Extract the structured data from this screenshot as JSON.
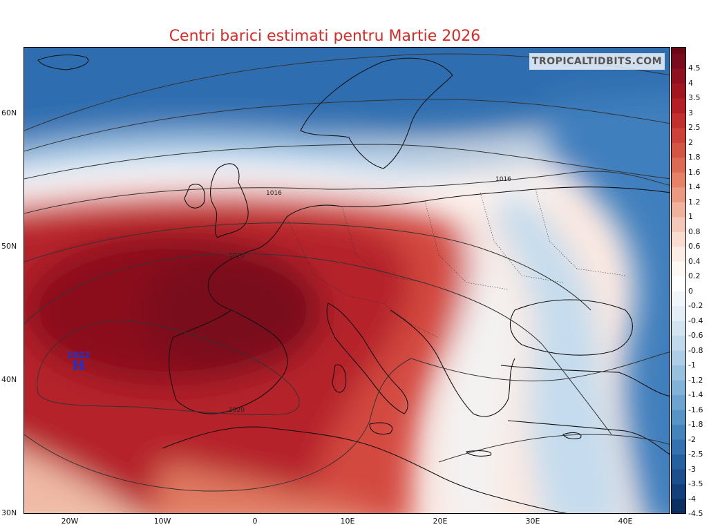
{
  "title": "Centri barici estimati pentru Martie 2026",
  "watermark": "TROPICALTIDBITS.COM",
  "latitude_labels": [
    "60N",
    "50N",
    "40N",
    "30N"
  ],
  "longitude_labels": [
    "20W",
    "10W",
    "0",
    "10E",
    "20E",
    "30E",
    "40E"
  ],
  "colorbar": {
    "labels": [
      "4.5",
      "4",
      "3.5",
      "3",
      "2.5",
      "2",
      "1.8",
      "1.6",
      "1.4",
      "1.2",
      "1",
      "0.8",
      "0.6",
      "0.4",
      "0.2",
      "0",
      "-0.2",
      "-0.4",
      "-0.6",
      "-0.8",
      "-1",
      "-1.2",
      "-1.4",
      "-1.6",
      "-1.8",
      "-2",
      "-2.5",
      "-3",
      "-3.5",
      "-4",
      "-4.5"
    ],
    "colors": [
      "#7a0b1c",
      "#8f1120",
      "#a3161f",
      "#b31f24",
      "#c22f2f",
      "#cd4139",
      "#d55545",
      "#dd6a54",
      "#e48167",
      "#ea9a82",
      "#efb29d",
      "#f4c8b8",
      "#f8dcd0",
      "#fbece6",
      "#fef8f5",
      "#ffffff",
      "#f1f6fb",
      "#e3eef7",
      "#d3e4f1",
      "#c1d9ec",
      "#aecde6",
      "#98c0df",
      "#82b2d8",
      "#6ca3cf",
      "#5694c6",
      "#4483bc",
      "#3371b0",
      "#2560a1",
      "#1b4f8e",
      "#13407a",
      "#0c2f63"
    ]
  },
  "isobar_labels": [
    "1016",
    "1020",
    "1016",
    "1020"
  ],
  "high_center": {
    "pressure": "1022",
    "symbol": "H"
  }
}
